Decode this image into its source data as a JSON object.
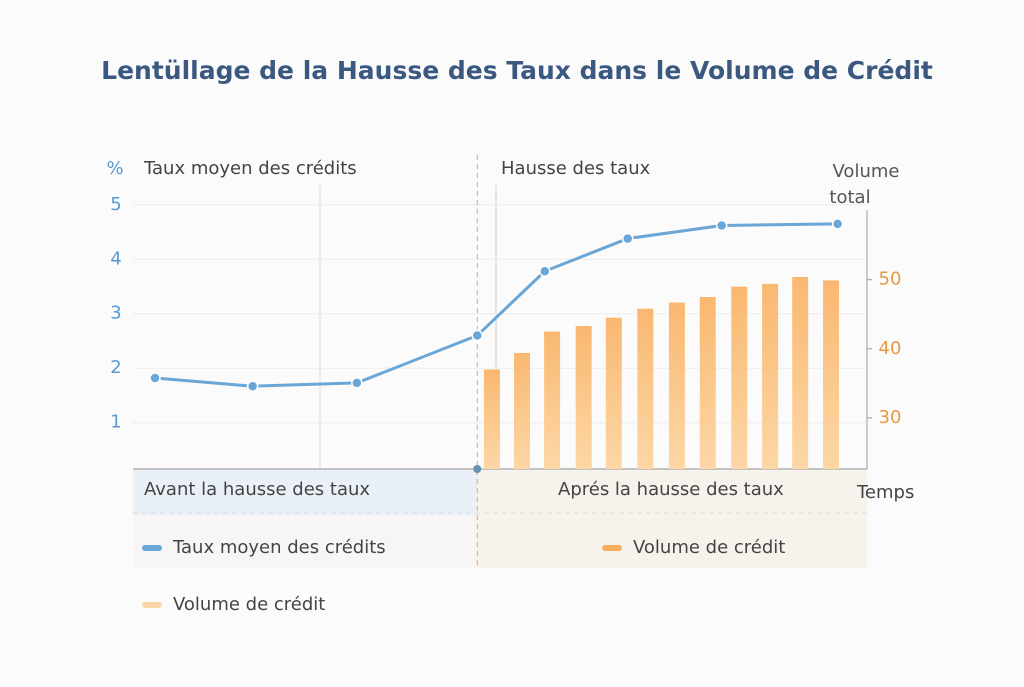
{
  "chart_data": {
    "type": "combo",
    "title": "Lentüllage de la Hausse des Taux dans le Volume de Crédit",
    "y_label": "%",
    "y2_label": "Volume total",
    "annotations": [
      "Taux moyen des crédits",
      "Hausse des taux"
    ],
    "regions": [
      "Avant la hausse des taux",
      "Aprés la hausse des taux"
    ],
    "x_label": "Temps",
    "xlim": [
      0,
      100
    ],
    "ylim": [
      0.15,
      5.4
    ],
    "yticks": [
      1,
      2,
      3,
      4,
      5
    ],
    "y2lim": [
      22.6,
      64
    ],
    "y2ticks": [
      30,
      40,
      50
    ],
    "event_x": 46.9,
    "series": [
      {
        "name": "Taux moyen des crédits",
        "type": "line",
        "color": "#6aa6d6",
        "x": [
          3,
          16.3,
          30.5,
          46.9,
          56.1,
          67.4,
          80.2,
          96
        ],
        "values": [
          1.82,
          1.67,
          1.73,
          2.6,
          3.78,
          4.38,
          4.62,
          4.65
        ]
      },
      {
        "name": "Volume de crédit",
        "type": "bar",
        "axis": "y2",
        "color": "#f6ad5c",
        "x": [
          48.9,
          53,
          57.1,
          61.4,
          65.5,
          69.8,
          74.1,
          78.3,
          82.6,
          86.8,
          90.9,
          95.1
        ],
        "values": [
          37.0,
          39.4,
          42.5,
          43.3,
          44.5,
          45.8,
          46.7,
          47.5,
          49.0,
          49.4,
          50.4,
          49.9
        ]
      }
    ],
    "extra_legend": {
      "name": "Volume de crédit",
      "color": "#fbd6a6"
    }
  }
}
